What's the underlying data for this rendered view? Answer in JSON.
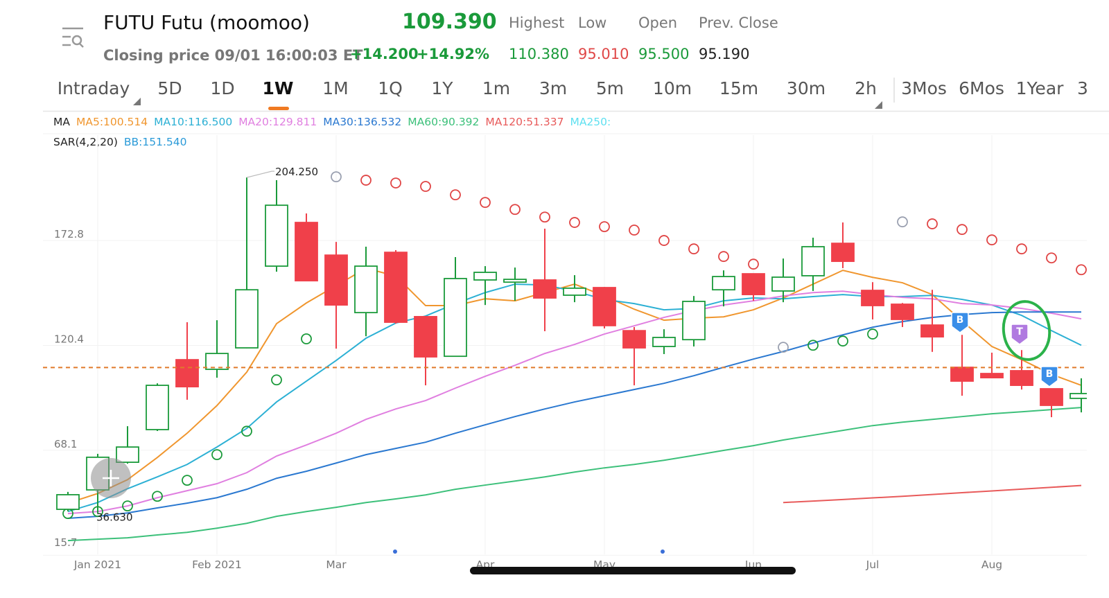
{
  "header": {
    "title": "FUTU Futu (moomoo)",
    "price": "109.390",
    "status": "Closing price 09/01 16:00:03 ET",
    "change": "+14.200",
    "change_pct": "+14.92%",
    "stats": [
      {
        "label": "Highest",
        "value": "110.380",
        "color": "#1a9a3a"
      },
      {
        "label": "Low",
        "value": "95.010",
        "color": "#e04848"
      },
      {
        "label": "Open",
        "value": "95.500",
        "color": "#1a9a3a"
      },
      {
        "label": "Prev. Close",
        "value": "95.190",
        "color": "#222222"
      }
    ]
  },
  "tabs": [
    "Intraday",
    "5D",
    "1D",
    "1W",
    "1M",
    "1Q",
    "1Y",
    "1m",
    "3m",
    "5m",
    "10m",
    "15m",
    "30m",
    "2h",
    "3Mos",
    "6Mos",
    "1Year",
    "3"
  ],
  "trade_markers": [
    "B",
    "T",
    "B"
  ],
  "chart_data": {
    "type": "candlestick",
    "ma_label": "MA",
    "categories": [
      null,
      "Jan 2021",
      null,
      null,
      null,
      "Feb 2021",
      null,
      null,
      null,
      "Mar",
      null,
      null,
      null,
      null,
      "Apr",
      null,
      null,
      null,
      "May",
      null,
      null,
      null,
      null,
      "Jun",
      null,
      null,
      null,
      "Jul",
      null,
      null,
      null,
      "Aug",
      null,
      null,
      null
    ],
    "ohlc": {
      "open": [
        38.6,
        48.3,
        62.1,
        78.4,
        113.3,
        108.5,
        119.2,
        160.0,
        181.8,
        165.5,
        136.8,
        166.9,
        134.8,
        115.0,
        153.1,
        152.0,
        153.1,
        145.5,
        149.3,
        127.8,
        119.9,
        123.3,
        148.2,
        156.2,
        147.6,
        155.2,
        171.4,
        147.9,
        141.0,
        130.6,
        109.5,
        106.4,
        107.8,
        98.8,
        94.0
      ],
      "high": [
        47.3,
        66.3,
        80.1,
        101.5,
        132.0,
        133.0,
        204.25,
        202.9,
        186.3,
        172.1,
        169.7,
        168.0,
        134.8,
        164.5,
        160.0,
        159.3,
        178.7,
        155.5,
        149.6,
        129.6,
        128.5,
        145.1,
        157.9,
        156.2,
        163.8,
        174.2,
        181.8,
        152.0,
        141.6,
        148.2,
        125.7,
        116.8,
        118.1,
        98.8,
        104.0
      ],
      "low": [
        37.6,
        36.63,
        61.4,
        77.7,
        93.3,
        104.3,
        119.0,
        157.2,
        152.5,
        118.8,
        125.0,
        131.3,
        100.5,
        114.8,
        140.6,
        142.7,
        127.5,
        142.0,
        128.9,
        100.5,
        116.1,
        119.9,
        139.9,
        142.7,
        142.0,
        147.6,
        159.0,
        133.4,
        129.6,
        117.2,
        95.3,
        104.3,
        98.4,
        84.6,
        87.0
      ],
      "close": [
        45.9,
        64.6,
        69.7,
        100.5,
        99.8,
        116.4,
        148.2,
        190.4,
        152.7,
        140.6,
        160.0,
        132.0,
        114.7,
        153.8,
        156.9,
        153.4,
        144.1,
        149.0,
        130.3,
        119.2,
        124.4,
        142.4,
        154.8,
        145.8,
        154.5,
        169.7,
        162.4,
        140.3,
        133.4,
        124.7,
        102.6,
        104.3,
        100.5,
        90.5,
        96.4
      ],
      "up_color": "#1a9a3a",
      "down_color": "#f0404a"
    },
    "series": [
      {
        "name": "MA5:100.514",
        "color": "#f0962e",
        "values": [
          41.7,
          46.5,
          53.4,
          64.5,
          76.6,
          90.4,
          107.1,
          131.3,
          141.6,
          150.3,
          158.9,
          155.1,
          140.3,
          140.3,
          143.7,
          142.7,
          146.8,
          151.0,
          145.1,
          138.5,
          133.0,
          134.0,
          134.7,
          138.2,
          144.1,
          151.0,
          157.9,
          154.4,
          151.7,
          145.8,
          132.6,
          119.9,
          113.3,
          106.0,
          100.5
        ]
      },
      {
        "name": "MA10:116.500",
        "color": "#2cb0d4",
        "values": [
          37.5,
          42.0,
          48.9,
          54.8,
          61.0,
          69.7,
          79.0,
          92.2,
          102.6,
          112.9,
          124.0,
          131.6,
          135.1,
          141.3,
          146.8,
          151.0,
          150.6,
          147.5,
          143.4,
          141.3,
          138.2,
          138.9,
          142.7,
          144.1,
          143.7,
          144.8,
          145.8,
          144.8,
          144.8,
          145.4,
          143.4,
          140.6,
          135.4,
          127.8,
          120.5
        ]
      },
      {
        "name": "MA20:129.811",
        "color": "#e07fe0",
        "values": [
          36.5,
          37.5,
          40.3,
          44.4,
          47.9,
          51.4,
          56.9,
          65.2,
          70.7,
          76.6,
          83.5,
          88.7,
          92.9,
          99.1,
          105.0,
          110.5,
          116.4,
          120.9,
          126.1,
          130.2,
          134.4,
          137.8,
          140.6,
          142.7,
          145.1,
          146.8,
          147.5,
          145.8,
          144.4,
          143.7,
          141.3,
          140.6,
          138.9,
          136.5,
          133.7
        ]
      },
      {
        "name": "MA30:136.532",
        "color": "#2a78d0",
        "values": [
          34.1,
          35.1,
          36.8,
          39.3,
          41.7,
          44.4,
          48.6,
          54.1,
          57.6,
          61.7,
          65.9,
          69.0,
          72.1,
          76.6,
          80.8,
          84.9,
          88.7,
          92.2,
          95.3,
          98.4,
          101.5,
          105.3,
          109.5,
          113.6,
          117.4,
          121.6,
          125.7,
          129.5,
          132.3,
          134.4,
          135.8,
          136.8,
          137.1,
          137.1,
          137.1
        ]
      },
      {
        "name": "MA60:90.392",
        "color": "#3cc07a",
        "values": [
          23.0,
          23.7,
          24.4,
          25.8,
          27.1,
          29.2,
          31.6,
          35.1,
          37.5,
          39.6,
          42.0,
          43.8,
          45.8,
          48.6,
          50.7,
          52.7,
          54.8,
          57.2,
          59.3,
          61.0,
          63.1,
          65.5,
          68.0,
          70.4,
          73.2,
          75.6,
          78.0,
          80.4,
          82.1,
          83.5,
          84.9,
          86.3,
          87.3,
          88.4,
          89.4
        ]
      },
      {
        "name": "MA120:51.337",
        "color": "#e85a5a",
        "values": [
          null,
          null,
          null,
          null,
          null,
          null,
          null,
          null,
          null,
          null,
          null,
          null,
          null,
          null,
          null,
          null,
          null,
          null,
          null,
          null,
          null,
          null,
          null,
          null,
          42.0,
          42.7,
          43.5,
          44.3,
          45.1,
          46.0,
          46.9,
          47.8,
          48.7,
          49.6,
          50.5
        ]
      },
      {
        "name": "MA250:",
        "color": "#5ee0f0",
        "values": [
          null,
          null,
          null,
          null,
          null,
          null,
          null,
          null,
          null,
          null,
          null,
          null,
          null,
          null,
          null,
          null,
          null,
          null,
          null,
          null,
          null,
          null,
          null,
          null,
          null,
          null,
          null,
          null,
          null,
          null,
          null,
          null,
          null,
          null,
          null
        ]
      }
    ],
    "sar": {
      "name": "SAR(4,2,20)",
      "values": [
        36.5,
        37.5,
        40.3,
        45.1,
        53.1,
        65.9,
        77.6,
        103.2,
        123.7,
        204.6,
        202.9,
        201.5,
        199.8,
        195.6,
        191.8,
        188.3,
        184.5,
        181.8,
        179.7,
        178.0,
        172.8,
        168.6,
        164.8,
        161.0,
        119.5,
        120.5,
        122.6,
        126.1,
        182.1,
        181.1,
        178.3,
        173.1,
        168.6,
        164.1,
        158.2
      ],
      "colors": [
        "#1a9a3a",
        "#1a9a3a",
        "#1a9a3a",
        "#1a9a3a",
        "#1a9a3a",
        "#1a9a3a",
        "#1a9a3a",
        "#1a9a3a",
        "#1a9a3a",
        "#9aa0b0",
        "#e04444",
        "#e04444",
        "#e04444",
        "#e04444",
        "#e04444",
        "#e04444",
        "#e04444",
        "#e04444",
        "#e04444",
        "#e04444",
        "#e04444",
        "#e04444",
        "#e04444",
        "#e04444",
        "#9aa0b0",
        "#1a9a3a",
        "#1a9a3a",
        "#1a9a3a",
        "#9aa0b0",
        "#e04444",
        "#e04444",
        "#e04444",
        "#e04444",
        "#e04444",
        "#e04444"
      ]
    },
    "bb": {
      "name": "BB:151.540",
      "color": "#2a9ad8"
    },
    "price_line": {
      "value": 109.39,
      "color": "#e07a2a"
    },
    "max_label": {
      "value": 204.25,
      "label": "204.250"
    },
    "min_label": {
      "value": 36.63,
      "label": "36.630"
    },
    "ylim": [
      14.4,
      225.4
    ],
    "yticks": [
      15.7,
      68.1,
      120.4,
      172.8
    ],
    "grid": true
  }
}
